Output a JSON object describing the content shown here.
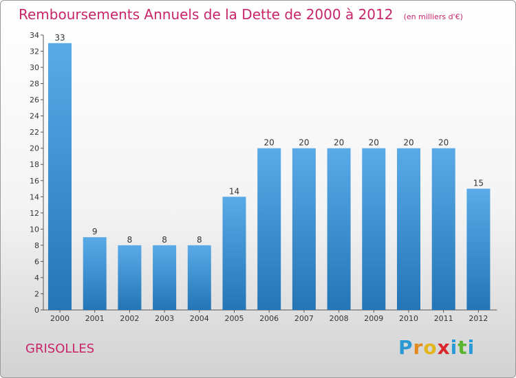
{
  "header": {
    "title": "Remboursements Annuels de la Dette de 2000 à 2012",
    "unit": "(en milliers d'€)"
  },
  "footer": {
    "city": "GRISOLLES",
    "logo_letters": [
      "P",
      "r",
      "o",
      "x",
      "i",
      "t",
      "i"
    ],
    "logo_colors": [
      "#2a9ad6",
      "#e38a1c",
      "#e4b51c",
      "#d8262c",
      "#2a9ad6",
      "#5ab52e",
      "#2a9ad6"
    ]
  },
  "colors": {
    "title": "#c8246a",
    "bar_light": "#5aaae8",
    "bar_dark": "#2375b5",
    "axis": "#555555"
  },
  "chart_data": {
    "type": "bar",
    "title": "Remboursements Annuels de la Dette de 2000 à 2012",
    "subtitle": "(en milliers d'€)",
    "xlabel": "",
    "ylabel": "",
    "categories": [
      "2000",
      "2001",
      "2002",
      "2003",
      "2004",
      "2005",
      "2006",
      "2007",
      "2008",
      "2009",
      "2010",
      "2011",
      "2012"
    ],
    "values": [
      33,
      9,
      8,
      8,
      8,
      14,
      20,
      20,
      20,
      20,
      20,
      20,
      15
    ],
    "ylim": [
      0,
      34
    ],
    "yticks": [
      0,
      2,
      4,
      6,
      8,
      10,
      12,
      14,
      16,
      18,
      20,
      22,
      24,
      26,
      28,
      30,
      32,
      34
    ],
    "grid": false,
    "legend": "none"
  }
}
